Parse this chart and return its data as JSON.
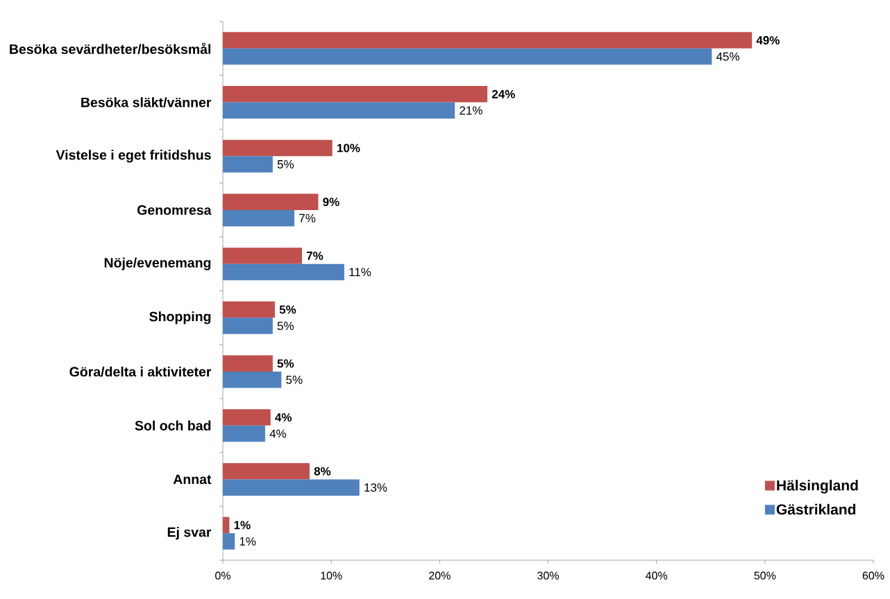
{
  "chart_data": {
    "type": "bar",
    "orientation": "horizontal",
    "categories": [
      "Besöka sevärdheter/besöksmål",
      "Besöka släkt/vänner",
      "Vistelse i eget fritidshus",
      "Genomresa",
      "Nöje/evenemang",
      "Shopping",
      "Göra/delta i aktiviteter",
      "Sol och bad",
      "Annat",
      "Ej svar"
    ],
    "series": [
      {
        "name": "Hälsingland",
        "color": "#c0504d",
        "values": [
          48.8,
          24.4,
          10.1,
          8.8,
          7.3,
          4.8,
          4.6,
          4.4,
          8.0,
          0.6
        ],
        "value_labels": [
          "49%",
          "24%",
          "10%",
          "9%",
          "7%",
          "5%",
          "5%",
          "4%",
          "8%",
          "1%"
        ]
      },
      {
        "name": "Gästrikland",
        "color": "#4f81bd",
        "values": [
          45.1,
          21.4,
          4.6,
          6.6,
          11.2,
          4.6,
          5.4,
          3.9,
          12.6,
          1.1
        ],
        "value_labels": [
          "45%",
          "21%",
          "5%",
          "7%",
          "11%",
          "5%",
          "5%",
          "4%",
          "13%",
          "1%"
        ]
      }
    ],
    "xlim": [
      0,
      60
    ],
    "xticks": [
      {
        "value": 0,
        "label": "0%"
      },
      {
        "value": 10,
        "label": "10%"
      },
      {
        "value": 20,
        "label": "20%"
      },
      {
        "value": 30,
        "label": "30%"
      },
      {
        "value": 40,
        "label": "40%"
      },
      {
        "value": 50,
        "label": "50%"
      },
      {
        "value": 60,
        "label": "60%"
      }
    ],
    "legend": "bottom right"
  }
}
